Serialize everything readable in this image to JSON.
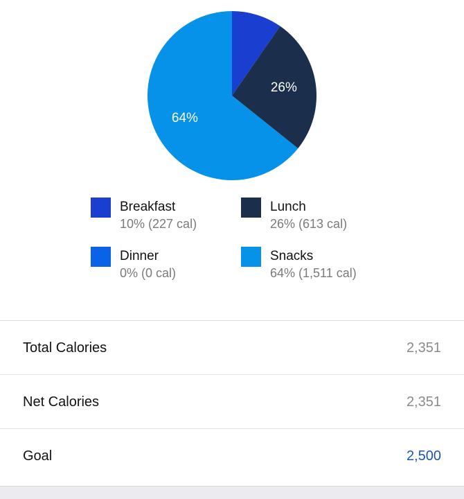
{
  "chart_data": {
    "type": "pie",
    "categories": [
      "Breakfast",
      "Lunch",
      "Dinner",
      "Snacks"
    ],
    "values": [
      227,
      613,
      0,
      1511
    ],
    "percentages": [
      10,
      26,
      0,
      64
    ],
    "slice_labels": [
      "",
      "26%",
      "",
      "64%"
    ],
    "colors": [
      "#1a3ecf",
      "#1b2e4b",
      "#0a63e6",
      "#0792ea"
    ],
    "start_angle": "12 o'clock",
    "direction": "clockwise"
  },
  "legend": {
    "items": [
      {
        "name": "Breakfast",
        "detail": "10% (227 cal)",
        "color": "#1a3ecf"
      },
      {
        "name": "Lunch",
        "detail": "26% (613 cal)",
        "color": "#1b2e4b"
      },
      {
        "name": "Dinner",
        "detail": "0% (0 cal)",
        "color": "#0a63e6"
      },
      {
        "name": "Snacks",
        "detail": "64% (1,511 cal)",
        "color": "#0792ea"
      }
    ]
  },
  "summary": {
    "rows": [
      {
        "label": "Total Calories",
        "value": "2,351"
      },
      {
        "label": "Net Calories",
        "value": "2,351"
      },
      {
        "label": "Goal",
        "value": "2,500"
      }
    ]
  },
  "colors": {
    "goal_accent": "#1a56b4"
  }
}
